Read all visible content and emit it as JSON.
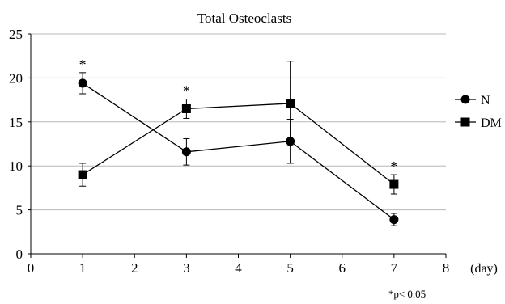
{
  "chart_data": {
    "type": "line",
    "title": "Total Osteoclasts",
    "xlabel": "(day)",
    "ylabel": "",
    "xlim": [
      0,
      8
    ],
    "ylim": [
      0,
      25
    ],
    "x_ticks": [
      "0",
      "1",
      "2",
      "3",
      "4",
      "5",
      "6",
      "7",
      "8"
    ],
    "y_ticks": [
      "0",
      "5",
      "10",
      "15",
      "20",
      "25"
    ],
    "grid": "horizontal",
    "legend_position": "right",
    "footnote": "*p< 0.05",
    "significance_marker": "*",
    "significant_x": [
      1,
      3,
      7
    ],
    "series": [
      {
        "name": "N",
        "marker": "circle",
        "color": "#000000",
        "x": [
          1,
          3,
          5,
          7
        ],
        "y": [
          19.4,
          11.6,
          12.8,
          3.9
        ],
        "error": [
          1.2,
          1.5,
          2.5,
          0.7
        ]
      },
      {
        "name": "DM",
        "marker": "square",
        "color": "#000000",
        "x": [
          1,
          3,
          5,
          7
        ],
        "y": [
          9.0,
          16.5,
          17.1,
          7.9
        ],
        "error": [
          1.3,
          1.1,
          4.8,
          1.1
        ]
      }
    ]
  }
}
